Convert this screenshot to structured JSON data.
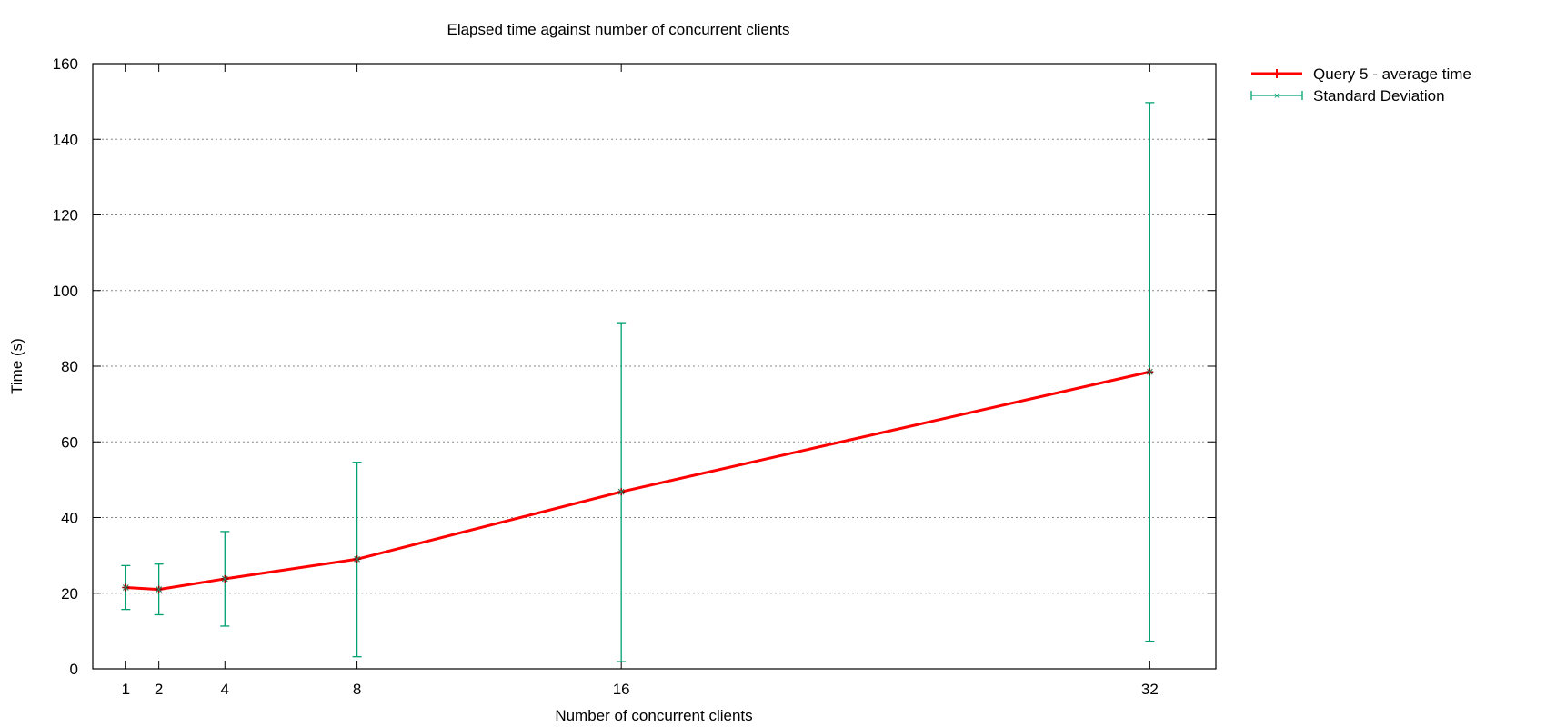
{
  "chart_data": {
    "type": "line",
    "title": "Elapsed time against number of concurrent clients",
    "xlabel": "Number of concurrent clients",
    "ylabel": "Time (s)",
    "x": [
      1,
      2,
      4,
      8,
      16,
      32
    ],
    "xlim": [
      0,
      34
    ],
    "ylim": [
      0,
      160
    ],
    "xticks": [
      "1",
      "2",
      "4",
      "8",
      "16",
      "32"
    ],
    "yticks": [
      "0",
      "20",
      "40",
      "60",
      "80",
      "100",
      "120",
      "140",
      "160"
    ],
    "grid": "horizontal dotted",
    "legend_position": "outside-top-right",
    "series": [
      {
        "name": "Query 5 - average time",
        "color": "#ff0000",
        "values": [
          21.5,
          21.0,
          23.8,
          29.0,
          46.8,
          78.5
        ]
      },
      {
        "name": "Standard Deviation",
        "color": "#00a070",
        "type": "errorbar",
        "center": [
          21.5,
          21.0,
          23.8,
          29.0,
          46.8,
          78.5
        ],
        "low": [
          15.7,
          14.3,
          11.3,
          3.2,
          1.9,
          7.3
        ],
        "high": [
          27.3,
          27.7,
          36.3,
          54.6,
          91.5,
          149.7
        ]
      }
    ]
  }
}
